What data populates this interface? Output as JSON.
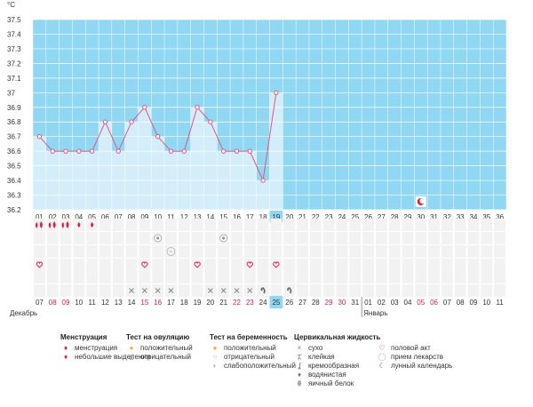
{
  "chart_data": {
    "type": "line",
    "ylabel": "°C",
    "ylim": [
      36.2,
      37.5
    ],
    "yticks": [
      "37.5",
      "37.4",
      "37.3",
      "37.2",
      "37.1",
      "37",
      "36.9",
      "36.8",
      "36.7",
      "36.6",
      "36.5",
      "36.4",
      "36.3",
      "36.2"
    ],
    "cycle_days": [
      "01",
      "02",
      "03",
      "04",
      "05",
      "06",
      "07",
      "08",
      "09",
      "10",
      "11",
      "12",
      "13",
      "14",
      "15",
      "16",
      "17",
      "18",
      "19",
      "20",
      "21",
      "22",
      "23",
      "24",
      "25",
      "26",
      "27",
      "28",
      "29",
      "30",
      "31",
      "32",
      "33",
      "34",
      "35",
      "36"
    ],
    "current_day": "19",
    "series": [
      {
        "values": [
          36.7,
          36.6,
          36.6,
          36.6,
          36.6,
          36.8,
          36.6,
          36.8,
          36.9,
          36.7,
          36.6,
          36.6,
          36.9,
          36.8,
          36.6,
          36.6,
          36.6,
          36.4,
          37.0
        ]
      }
    ],
    "calendar_dates": [
      "07",
      "08",
      "09",
      "10",
      "11",
      "12",
      "13",
      "14",
      "15",
      "16",
      "17",
      "18",
      "19",
      "20",
      "21",
      "22",
      "23",
      "24",
      "25",
      "26",
      "27",
      "28",
      "29",
      "30",
      "31",
      "01",
      "02",
      "03",
      "04",
      "05",
      "06",
      "07",
      "08",
      "09",
      "10",
      "11"
    ],
    "calendar_red": [
      "08",
      "09",
      "15",
      "16",
      "22",
      "23",
      "29",
      "30",
      "05",
      "06"
    ],
    "today_date": "25",
    "months": [
      {
        "label": "Декабрь",
        "day_index": 0
      },
      {
        "label": "Январь",
        "day_index": 25
      }
    ],
    "moon_day_index": 29,
    "menstruation": [
      "big",
      "big",
      "big",
      "small",
      "small",
      "",
      "",
      "",
      "",
      "",
      "",
      "",
      "",
      "",
      "",
      "",
      "",
      "",
      "",
      "",
      "",
      "",
      "",
      "",
      "",
      "",
      "",
      "",
      "",
      "",
      "",
      "",
      "",
      "",
      "",
      ""
    ],
    "ovulation": [
      "",
      "",
      "",
      "",
      "",
      "",
      "",
      "",
      "",
      "neg",
      "",
      "",
      "",
      "",
      "neg",
      "",
      "",
      "",
      "",
      "",
      "",
      "",
      "",
      "",
      "",
      "",
      "",
      "",
      "",
      "",
      "",
      "",
      "",
      "",
      "",
      ""
    ],
    "pregnancy": [
      "",
      "",
      "",
      "",
      "",
      "",
      "",
      "",
      "",
      "",
      "slight",
      "",
      "",
      "",
      "",
      "",
      "",
      "",
      "",
      "",
      "",
      "",
      "",
      "",
      "",
      "",
      "",
      "",
      "",
      "",
      "",
      "",
      "",
      "",
      "",
      ""
    ],
    "intercourse": [
      "heart",
      "",
      "",
      "",
      "",
      "",
      "",
      "",
      "heart",
      "",
      "",
      "",
      "heart",
      "",
      "",
      "",
      "heart",
      "",
      "heart",
      "",
      "",
      "",
      "",
      "",
      "",
      "",
      "",
      "",
      "",
      "",
      "",
      "",
      "",
      "",
      "",
      ""
    ],
    "fluid": [
      "",
      "",
      "",
      "",
      "",
      "",
      "",
      "cross",
      "cross",
      "cross",
      "cross",
      "",
      "",
      "cross",
      "cross",
      "cross",
      "cross",
      "cream",
      "",
      "cream",
      "",
      "",
      "",
      "",
      "",
      "",
      "",
      "",
      "",
      "",
      "",
      "",
      "",
      "",
      "",
      ""
    ]
  },
  "legend": {
    "groups": [
      {
        "title": "Менструация",
        "items": [
          {
            "icon": "menstruation",
            "label": "менструация"
          },
          {
            "icon": "spotting",
            "label": "небольшие выделения"
          }
        ]
      },
      {
        "title": "Тест на овуляцию",
        "items": [
          {
            "icon": "positive",
            "label": "положительный"
          },
          {
            "icon": "negative",
            "label": "отрицательный"
          }
        ]
      },
      {
        "title": "Тест на беременность",
        "items": [
          {
            "icon": "positive",
            "label": "положительный"
          },
          {
            "icon": "negative-white",
            "label": "отрицательный"
          },
          {
            "icon": "slight",
            "label": "слабоположительный"
          }
        ]
      },
      {
        "title": "Цервикальная жидкость",
        "items": [
          {
            "icon": "dry",
            "label": "сухо"
          },
          {
            "icon": "sticky",
            "label": "клейкая"
          },
          {
            "icon": "creamy",
            "label": "кремообразная"
          },
          {
            "icon": "watery",
            "label": "водянистая"
          },
          {
            "icon": "eggwhite",
            "label": "яичный белок"
          }
        ]
      },
      {
        "title": "",
        "items": [
          {
            "icon": "heart",
            "label": "половой акт"
          },
          {
            "icon": "medicine",
            "label": "прием лекарств"
          },
          {
            "icon": "moon",
            "label": "лунный календарь"
          }
        ]
      }
    ]
  },
  "colors": {
    "background": "#ffffff",
    "sky": "#8fd7f3",
    "fill": "#d3eefa",
    "line": "#e4557f",
    "highlight": "#8fd7f3",
    "red": "#e11b4a",
    "grid": "#ffffff",
    "icon": "#888888"
  }
}
